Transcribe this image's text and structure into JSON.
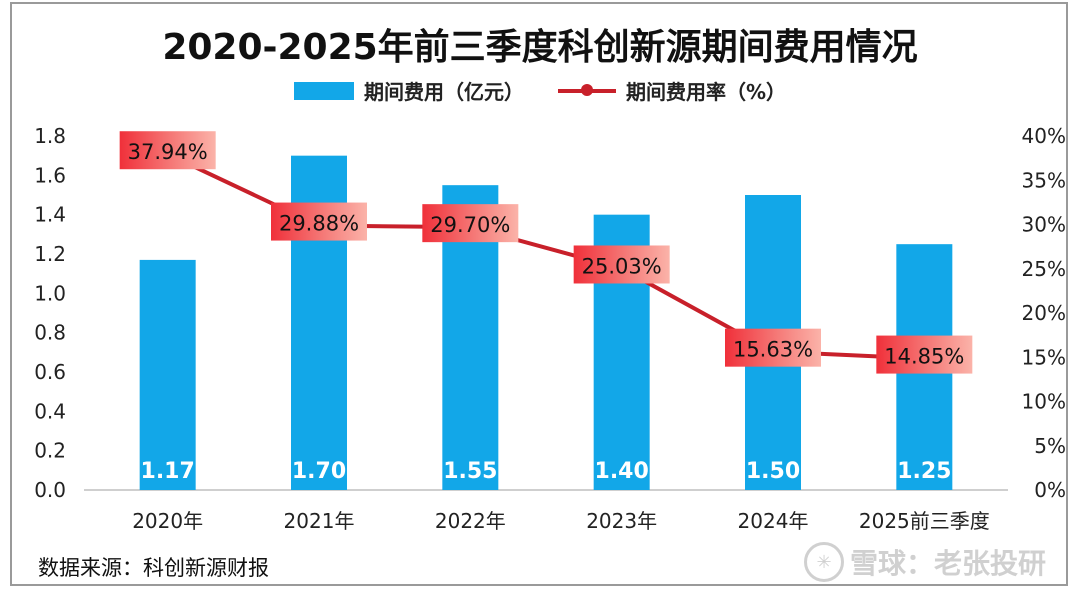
{
  "chart_data": {
    "type": "bar",
    "title": "2020-2025年前三季度科创新源期间费用情况",
    "categories": [
      "2020年",
      "2021年",
      "2022年",
      "2023年",
      "2024年",
      "2025前三季度"
    ],
    "series": [
      {
        "name": "期间费用（亿元）",
        "type": "bar",
        "axis": "left",
        "values": [
          1.17,
          1.7,
          1.55,
          1.4,
          1.5,
          1.25
        ],
        "labels": [
          "1.17",
          "1.70",
          "1.55",
          "1.40",
          "1.50",
          "1.25"
        ],
        "color": "#12a7e8"
      },
      {
        "name": "期间费用率（%）",
        "type": "line",
        "axis": "right",
        "values": [
          37.94,
          29.88,
          29.7,
          25.03,
          15.63,
          14.85
        ],
        "labels": [
          "37.94%",
          "29.88%",
          "29.70%",
          "25.03%",
          "15.63%",
          "14.85%"
        ],
        "color": "#c8202a"
      }
    ],
    "y_left": {
      "min": 0,
      "max": 1.8,
      "ticks": [
        "0.0",
        "0.2",
        "0.4",
        "0.6",
        "0.8",
        "1.0",
        "1.2",
        "1.4",
        "1.6",
        "1.8"
      ]
    },
    "y_right": {
      "min": 0,
      "max": 40,
      "ticks": [
        "0%",
        "5%",
        "10%",
        "15%",
        "20%",
        "25%",
        "30%",
        "35%",
        "40%"
      ]
    },
    "legend": [
      "期间费用（亿元）",
      "期间费用率（%）"
    ],
    "legend_position": "top"
  },
  "footer": {
    "source": "数据来源：科创新源财报",
    "watermark": "雪球：老张投研"
  }
}
